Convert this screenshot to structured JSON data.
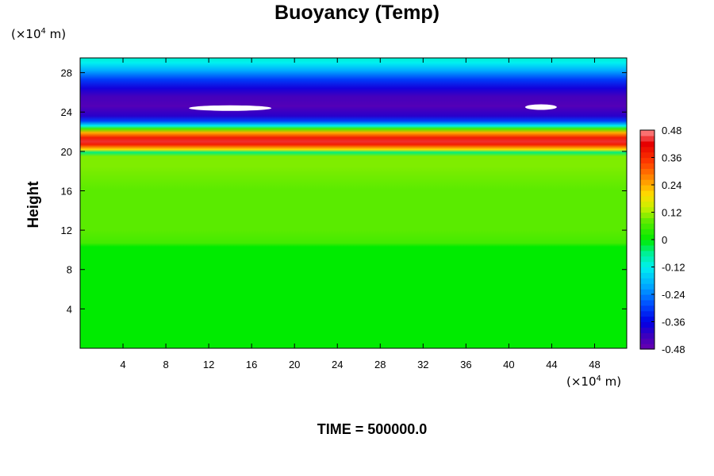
{
  "title": "Buoyancy (Temp)",
  "y_unit": {
    "base": "(×10",
    "exp": "4",
    "tail": " m)"
  },
  "x_unit": {
    "base": "(×10",
    "exp": "4",
    "tail": " m)"
  },
  "time_label": "TIME = 500000.0",
  "chart_data": {
    "type": "heatmap",
    "title": "Buoyancy (Temp)",
    "ylabel": "Height",
    "xlabel": "",
    "x_unit": "(×10⁴ m)",
    "y_unit": "(×10⁴ m)",
    "xlim": [
      0,
      51
    ],
    "ylim": [
      0,
      29.5
    ],
    "x_ticks": [
      4,
      8,
      12,
      16,
      20,
      24,
      28,
      32,
      36,
      40,
      44,
      48
    ],
    "y_ticks": [
      4,
      8,
      12,
      16,
      20,
      24,
      28
    ],
    "colorbar": {
      "ticks": [
        0.48,
        0.36,
        0.24,
        0.12,
        0,
        -0.12,
        -0.24,
        -0.36,
        -0.48
      ],
      "tick_labels": [
        "0.48",
        "0.36",
        "0.24",
        "0.12",
        "0",
        "-0.12",
        "-0.24",
        "-0.36",
        "-0.48"
      ],
      "range": [
        -0.48,
        0.48
      ],
      "levels": 40
    },
    "vertical_profile": [
      {
        "height": 0,
        "value": 0.0
      },
      {
        "height": 10.3,
        "value": 0.0
      },
      {
        "height": 10.7,
        "value": 0.06
      },
      {
        "height": 12,
        "value": 0.08
      },
      {
        "height": 16,
        "value": 0.08
      },
      {
        "height": 18.5,
        "value": 0.1
      },
      {
        "height": 19.5,
        "value": 0.1
      },
      {
        "height": 19.9,
        "value": -0.05
      },
      {
        "height": 20.2,
        "value": 0.2
      },
      {
        "height": 20.7,
        "value": 0.38
      },
      {
        "height": 21.0,
        "value": 0.44
      },
      {
        "height": 21.4,
        "value": 0.38
      },
      {
        "height": 21.9,
        "value": 0.24
      },
      {
        "height": 22.3,
        "value": 0.06
      },
      {
        "height": 22.6,
        "value": -0.12
      },
      {
        "height": 23.1,
        "value": -0.3
      },
      {
        "height": 23.6,
        "value": -0.4
      },
      {
        "height": 24.6,
        "value": -0.45
      },
      {
        "height": 25.6,
        "value": -0.43
      },
      {
        "height": 26.4,
        "value": -0.38
      },
      {
        "height": 27.3,
        "value": -0.3
      },
      {
        "height": 28.2,
        "value": -0.2
      },
      {
        "height": 29.0,
        "value": -0.12
      },
      {
        "height": 29.5,
        "value": -0.1
      }
    ],
    "extremes": [
      {
        "x": 14,
        "y": 24.4,
        "value": -0.5
      },
      {
        "x": 43,
        "y": 24.5,
        "value": -0.5
      }
    ]
  }
}
